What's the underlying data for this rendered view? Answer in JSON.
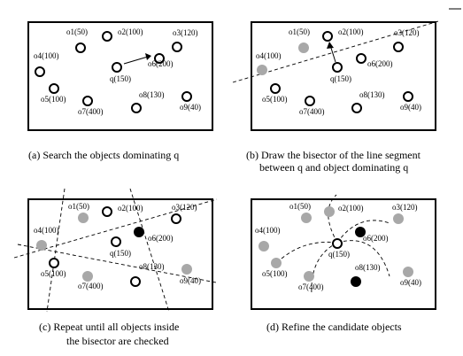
{
  "panels": [
    {
      "caption_lines": [
        "(a)  Search the objects dominating q"
      ],
      "labels": {
        "o1": "o1(50)",
        "o2": "o2(100)",
        "o3": "o3(120)",
        "o4": "o4(100)",
        "o5": "o5(100)",
        "o6": "o6(200)",
        "o7": "o7(400)",
        "o8": "o8(130)",
        "o9": "o9(40)",
        "q": "q(150)"
      }
    },
    {
      "caption_lines": [
        "(b) Draw the bisector of the line segment",
        "between q and object dominating q"
      ],
      "labels": {
        "o1": "o1(50)",
        "o2": "o2(100)",
        "o3": "o3(120)",
        "o4": "o4(100)",
        "o5": "o5(100)",
        "o6": "o6(200)",
        "o7": "o7(400)",
        "o8": "o8(130)",
        "o9": "o9(40)",
        "q": "q(150)"
      }
    },
    {
      "caption_lines": [
        "(c) Repeat until all objects inside",
        "the bisector are checked"
      ],
      "labels": {
        "o1": "o1(50)",
        "o2": "o2(100)",
        "o3": "o3(120)",
        "o4": "o4(100)",
        "o5": "o5(100)",
        "o6": "o6(200)",
        "o7": "o7(400)",
        "o8": "o8(130)",
        "o9": "o9(40)",
        "q": "q(150)"
      }
    },
    {
      "caption_lines": [
        "(d) Refine the candidate objects"
      ],
      "labels": {
        "o1": "o1(50)",
        "o2": "o2(100)",
        "o3": "o3(120)",
        "o4": "o4(100)",
        "o5": "o5(100)",
        "o6": "o6(200)",
        "o7": "o7(400)",
        "o8": "o8(130)",
        "o9": "o9(40)",
        "q": "q(150)"
      }
    }
  ]
}
